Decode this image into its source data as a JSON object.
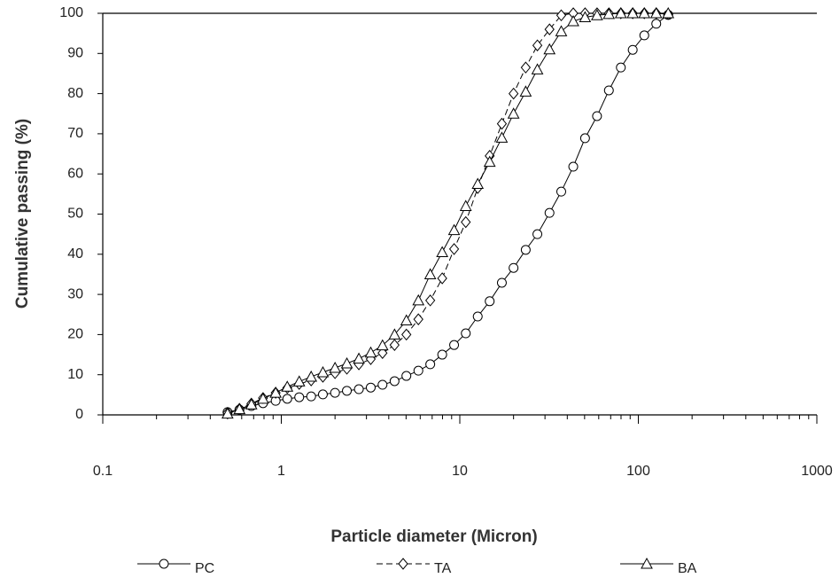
{
  "chart_data": {
    "type": "line",
    "xlabel": "Particle diameter (Micron)",
    "ylabel": "Cumulative passing (%)",
    "xscale": "log",
    "xlim": [
      0.1,
      1000
    ],
    "xticks": [
      0.1,
      1,
      10,
      100,
      1000
    ],
    "minor_ticks": true,
    "ylim": [
      0,
      100
    ],
    "yticks": [
      0,
      10,
      20,
      30,
      40,
      50,
      60,
      70,
      80,
      90,
      100
    ],
    "legend": "bottom",
    "x": [
      0.5,
      0.583,
      0.68,
      0.79,
      0.93,
      1.08,
      1.26,
      1.47,
      1.71,
      2.0,
      2.33,
      2.72,
      3.17,
      3.69,
      4.31,
      5.02,
      5.86,
      6.83,
      7.97,
      9.29,
      10.8,
      12.6,
      14.7,
      17.2,
      20.0,
      23.4,
      27.2,
      31.8,
      37.0,
      43.2,
      50.3,
      58.7,
      68.4,
      79.8,
      93.0,
      108,
      126,
      147
    ],
    "series": [
      {
        "name": "PC",
        "color": "#000000",
        "marker": "circle",
        "dash": false,
        "values": [
          0.7,
          1.3,
          2.2,
          2.9,
          3.5,
          4.0,
          4.4,
          4.6,
          5.1,
          5.5,
          6.0,
          6.4,
          6.8,
          7.5,
          8.4,
          9.7,
          11.0,
          12.6,
          15.0,
          17.4,
          20.3,
          24.5,
          28.3,
          32.9,
          36.6,
          41.1,
          45.0,
          50.3,
          55.6,
          61.8,
          68.9,
          74.4,
          80.8,
          86.5,
          90.9,
          94.5,
          97.4,
          99.6
        ]
      },
      {
        "name": "TA",
        "color": "#000000",
        "marker": "diamond",
        "dash": true,
        "values": [
          0.5,
          1.5,
          2.8,
          4.2,
          5.5,
          6.7,
          7.7,
          8.6,
          9.5,
          10.4,
          11.5,
          12.6,
          13.9,
          15.4,
          17.4,
          20.0,
          23.8,
          28.5,
          34.0,
          41.3,
          48.0,
          56.5,
          64.5,
          72.5,
          80.0,
          86.5,
          92.0,
          96.0,
          99.5,
          100,
          100,
          100,
          100,
          100,
          100,
          100,
          100,
          99.8
        ]
      },
      {
        "name": "BA",
        "color": "#000000",
        "marker": "triangle",
        "dash": false,
        "values": [
          0.3,
          1.4,
          2.6,
          4.0,
          5.5,
          7.0,
          8.3,
          9.5,
          10.6,
          11.7,
          12.8,
          14.0,
          15.5,
          17.3,
          20.0,
          23.5,
          28.5,
          35.0,
          40.5,
          46.0,
          52.0,
          57.5,
          63.0,
          69.0,
          75.0,
          80.5,
          86.0,
          91.0,
          95.5,
          98.0,
          99.0,
          99.5,
          99.8,
          100,
          100,
          100,
          100,
          100
        ]
      }
    ]
  }
}
